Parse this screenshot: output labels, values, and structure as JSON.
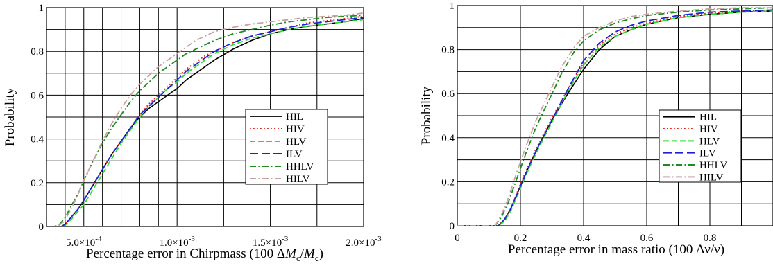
{
  "chart_data": [
    {
      "type": "line",
      "title": "",
      "xlabel": "Percentage error in Chirpmass (100 ΔM_c/M_c)",
      "xlabel_parts": [
        "Percentage error in Chirpmass (100 Δ",
        "M",
        "c",
        "/",
        "M",
        "c",
        ")"
      ],
      "ylabel": "Probability",
      "xlim": [
        0.0003,
        0.002
      ],
      "ylim": [
        0,
        1
      ],
      "x_ticks": [
        0.0005,
        0.001,
        0.0015,
        0.002
      ],
      "x_tick_labels": [
        {
          "mant": "5.0×10",
          "exp": "-4"
        },
        {
          "mant": "1.0×10",
          "exp": "-3"
        },
        {
          "mant": "1.5×10",
          "exp": "-3"
        },
        {
          "mant": "2.0×10",
          "exp": "-3"
        }
      ],
      "x_grid": [
        0.0004,
        0.0005,
        0.0006,
        0.0007,
        0.0008,
        0.0009,
        0.001,
        0.00125,
        0.0015,
        0.00175,
        0.002
      ],
      "y_ticks": [
        0,
        0.2,
        0.4,
        0.6,
        0.8,
        1
      ],
      "y_tick_labels": [
        "0",
        "0.2",
        "0.4",
        "0.6",
        "0.8",
        "1"
      ],
      "y_grid": [
        0,
        0.1,
        0.2,
        0.3,
        0.4,
        0.5,
        0.6,
        0.7,
        0.8,
        0.9,
        1
      ],
      "grid": true,
      "legend_position": "right",
      "series": [
        {
          "name": "HIL",
          "color": "#000000",
          "dash": "solid",
          "x": [
            0.00038,
            0.0004,
            0.00043,
            0.00047,
            0.0005,
            0.00055,
            0.0006,
            0.00065,
            0.0007,
            0.00075,
            0.0008,
            0.00085,
            0.0009,
            0.00095,
            0.001,
            0.00105,
            0.0011,
            0.00115,
            0.0012,
            0.0013,
            0.0014,
            0.0015,
            0.0016,
            0.0017,
            0.0018,
            0.0019,
            0.002
          ],
          "y": [
            0,
            0.01,
            0.04,
            0.08,
            0.12,
            0.19,
            0.26,
            0.33,
            0.39,
            0.45,
            0.5,
            0.54,
            0.57,
            0.6,
            0.63,
            0.67,
            0.7,
            0.73,
            0.76,
            0.81,
            0.85,
            0.88,
            0.9,
            0.915,
            0.925,
            0.935,
            0.95
          ]
        },
        {
          "name": "HIV",
          "color": "#e8201a",
          "dash": "dotted",
          "x": [
            0.00038,
            0.0004,
            0.00043,
            0.00047,
            0.0005,
            0.00055,
            0.0006,
            0.00065,
            0.0007,
            0.00075,
            0.0008,
            0.00085,
            0.0009,
            0.00095,
            0.001,
            0.00105,
            0.0011,
            0.00115,
            0.0012,
            0.0013,
            0.0014,
            0.0015,
            0.0016,
            0.0017,
            0.0018,
            0.0019,
            0.002
          ],
          "y": [
            0,
            0.01,
            0.04,
            0.08,
            0.12,
            0.19,
            0.26,
            0.33,
            0.39,
            0.45,
            0.51,
            0.56,
            0.6,
            0.64,
            0.68,
            0.72,
            0.75,
            0.78,
            0.8,
            0.84,
            0.87,
            0.89,
            0.91,
            0.93,
            0.94,
            0.95,
            0.96
          ]
        },
        {
          "name": "HLV",
          "color": "#2ddc2d",
          "dash": "dashed",
          "x": [
            0.00038,
            0.0004,
            0.00043,
            0.00047,
            0.0005,
            0.00055,
            0.0006,
            0.00065,
            0.0007,
            0.00075,
            0.0008,
            0.00085,
            0.0009,
            0.00095,
            0.001,
            0.00105,
            0.0011,
            0.00115,
            0.0012,
            0.0013,
            0.0014,
            0.0015,
            0.0016,
            0.0017,
            0.0018,
            0.0019,
            0.002
          ],
          "y": [
            0,
            0.005,
            0.03,
            0.07,
            0.1,
            0.17,
            0.24,
            0.31,
            0.38,
            0.44,
            0.5,
            0.55,
            0.59,
            0.63,
            0.66,
            0.7,
            0.73,
            0.76,
            0.79,
            0.83,
            0.86,
            0.88,
            0.9,
            0.915,
            0.925,
            0.935,
            0.945
          ]
        },
        {
          "name": "ILV",
          "color": "#1a24d6",
          "dash": "longdash",
          "x": [
            0.00038,
            0.0004,
            0.00043,
            0.00047,
            0.0005,
            0.00055,
            0.0006,
            0.00065,
            0.0007,
            0.00075,
            0.0008,
            0.00085,
            0.0009,
            0.00095,
            0.001,
            0.00105,
            0.0011,
            0.00115,
            0.0012,
            0.0013,
            0.0014,
            0.0015,
            0.0016,
            0.0017,
            0.0018,
            0.0019,
            0.002
          ],
          "y": [
            0,
            0.01,
            0.04,
            0.08,
            0.12,
            0.19,
            0.26,
            0.33,
            0.39,
            0.45,
            0.51,
            0.55,
            0.59,
            0.63,
            0.67,
            0.71,
            0.74,
            0.77,
            0.8,
            0.84,
            0.87,
            0.89,
            0.91,
            0.925,
            0.935,
            0.945,
            0.955
          ]
        },
        {
          "name": "HHLV",
          "color": "#1f8a1f",
          "dash": "dashdot",
          "x": [
            0.00034,
            0.00037,
            0.0004,
            0.00043,
            0.00047,
            0.0005,
            0.00055,
            0.0006,
            0.00065,
            0.0007,
            0.00075,
            0.0008,
            0.00085,
            0.0009,
            0.00095,
            0.001,
            0.00105,
            0.0011,
            0.00115,
            0.0012,
            0.0013,
            0.0014,
            0.0015,
            0.0016,
            0.0017,
            0.0018,
            0.0019,
            0.002
          ],
          "y": [
            0,
            0.01,
            0.04,
            0.09,
            0.15,
            0.21,
            0.3,
            0.38,
            0.45,
            0.51,
            0.57,
            0.62,
            0.66,
            0.7,
            0.73,
            0.76,
            0.79,
            0.81,
            0.83,
            0.85,
            0.88,
            0.9,
            0.92,
            0.935,
            0.945,
            0.955,
            0.96,
            0.965
          ]
        },
        {
          "name": "HILV",
          "color": "#c9a0a0",
          "dash": "dashdot",
          "x": [
            0.00036,
            0.00039,
            0.00042,
            0.00046,
            0.0005,
            0.00055,
            0.0006,
            0.00065,
            0.0007,
            0.00075,
            0.0008,
            0.00085,
            0.0009,
            0.00095,
            0.001,
            0.00105,
            0.0011,
            0.00115,
            0.0012,
            0.0013,
            0.0014,
            0.0015,
            0.0016,
            0.0017,
            0.0018,
            0.0019,
            0.002
          ],
          "y": [
            0,
            0.02,
            0.06,
            0.13,
            0.21,
            0.3,
            0.39,
            0.47,
            0.54,
            0.6,
            0.65,
            0.69,
            0.73,
            0.76,
            0.79,
            0.82,
            0.85,
            0.87,
            0.89,
            0.91,
            0.925,
            0.935,
            0.945,
            0.955,
            0.96,
            0.965,
            0.975
          ]
        }
      ]
    },
    {
      "type": "line",
      "title": "",
      "xlabel": "Percentage error in mass ratio (100 Δν/ν)",
      "ylabel": "Probability",
      "xlim": [
        0,
        1
      ],
      "ylim": [
        0,
        1
      ],
      "x_ticks": [
        0,
        0.2,
        0.4,
        0.6,
        0.8
      ],
      "x_tick_labels": [
        "0",
        "0.2",
        "0.4",
        "0.6",
        "0.8"
      ],
      "x_grid": [
        0,
        0.1,
        0.2,
        0.3,
        0.4,
        0.5,
        0.6,
        0.7,
        0.8,
        0.9,
        1
      ],
      "y_ticks": [
        0,
        0.2,
        0.4,
        0.6,
        0.8,
        1
      ],
      "y_tick_labels": [
        "0",
        "0.2",
        "0.4",
        "0.6",
        "0.8",
        "1"
      ],
      "y_grid": [
        0,
        0.1,
        0.2,
        0.3,
        0.4,
        0.5,
        0.6,
        0.7,
        0.8,
        0.9,
        1
      ],
      "grid": true,
      "legend_position": "right",
      "series": [
        {
          "name": "HIL",
          "color": "#000000",
          "dash": "solid",
          "x": [
            0.13,
            0.15,
            0.17,
            0.2,
            0.23,
            0.26,
            0.3,
            0.35,
            0.4,
            0.45,
            0.5,
            0.55,
            0.6,
            0.7,
            0.8,
            0.9,
            1.0
          ],
          "y": [
            0,
            0.03,
            0.08,
            0.18,
            0.28,
            0.37,
            0.48,
            0.6,
            0.71,
            0.8,
            0.86,
            0.89,
            0.915,
            0.945,
            0.96,
            0.97,
            0.975
          ]
        },
        {
          "name": "HIV",
          "color": "#e8201a",
          "dash": "dotted",
          "x": [
            0.13,
            0.15,
            0.17,
            0.2,
            0.23,
            0.26,
            0.3,
            0.35,
            0.4,
            0.45,
            0.5,
            0.55,
            0.6,
            0.7,
            0.8,
            0.9,
            1.0
          ],
          "y": [
            0,
            0.03,
            0.08,
            0.19,
            0.29,
            0.38,
            0.49,
            0.62,
            0.74,
            0.82,
            0.87,
            0.9,
            0.92,
            0.95,
            0.965,
            0.975,
            0.98
          ]
        },
        {
          "name": "HLV",
          "color": "#2ddc2d",
          "dash": "dashed",
          "x": [
            0.13,
            0.15,
            0.17,
            0.2,
            0.23,
            0.26,
            0.3,
            0.35,
            0.4,
            0.45,
            0.5,
            0.55,
            0.6,
            0.7,
            0.8,
            0.9,
            1.0
          ],
          "y": [
            0,
            0.02,
            0.07,
            0.17,
            0.27,
            0.36,
            0.47,
            0.61,
            0.73,
            0.81,
            0.86,
            0.89,
            0.915,
            0.945,
            0.96,
            0.97,
            0.975
          ]
        },
        {
          "name": "ILV",
          "color": "#1a24d6",
          "dash": "longdash",
          "x": [
            0.13,
            0.15,
            0.17,
            0.2,
            0.23,
            0.26,
            0.3,
            0.35,
            0.4,
            0.45,
            0.5,
            0.55,
            0.6,
            0.7,
            0.8,
            0.9,
            1.0
          ],
          "y": [
            0,
            0.03,
            0.08,
            0.18,
            0.28,
            0.37,
            0.48,
            0.62,
            0.75,
            0.83,
            0.88,
            0.91,
            0.93,
            0.955,
            0.97,
            0.975,
            0.98
          ]
        },
        {
          "name": "HHLV",
          "color": "#1f8a1f",
          "dash": "dashdot",
          "x": [
            0.12,
            0.14,
            0.16,
            0.19,
            0.22,
            0.25,
            0.29,
            0.33,
            0.37,
            0.4,
            0.45,
            0.5,
            0.55,
            0.6,
            0.7,
            0.8,
            0.9,
            1.0
          ],
          "y": [
            0,
            0.04,
            0.1,
            0.22,
            0.34,
            0.45,
            0.57,
            0.69,
            0.79,
            0.84,
            0.89,
            0.92,
            0.94,
            0.955,
            0.97,
            0.98,
            0.985,
            0.99
          ]
        },
        {
          "name": "HILV",
          "color": "#c9a0a0",
          "dash": "dashdot",
          "x": [
            0.12,
            0.14,
            0.16,
            0.19,
            0.22,
            0.25,
            0.29,
            0.33,
            0.37,
            0.4,
            0.45,
            0.5,
            0.55,
            0.6,
            0.7,
            0.8,
            0.9,
            1.0
          ],
          "y": [
            0,
            0.05,
            0.12,
            0.25,
            0.37,
            0.48,
            0.6,
            0.72,
            0.81,
            0.86,
            0.9,
            0.93,
            0.95,
            0.96,
            0.975,
            0.985,
            0.99,
            0.99
          ]
        }
      ]
    }
  ]
}
